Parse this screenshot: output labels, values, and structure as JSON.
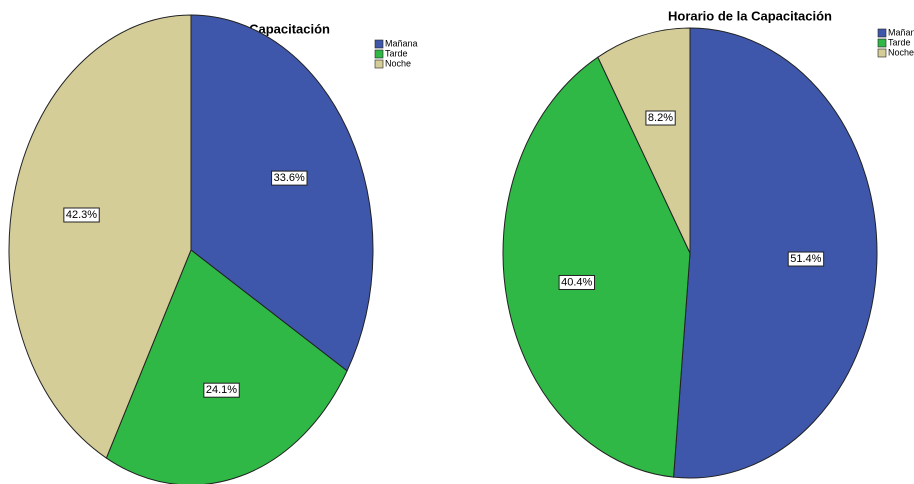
{
  "chart_data": [
    {
      "type": "pie",
      "title": "Horario de la Capacitación",
      "categories": [
        "Mañana",
        "Tarde",
        "Noche"
      ],
      "values": [
        33.6,
        24.1,
        42.3
      ],
      "value_labels": [
        "33.6%",
        "24.1%",
        "42.3%"
      ],
      "colors": [
        "#3f57ab",
        "#2fb845",
        "#d5cd98"
      ]
    },
    {
      "type": "pie",
      "title": "Horario de la Capacitación",
      "categories": [
        "Mañan",
        "Tarde",
        "Noche"
      ],
      "values": [
        51.4,
        40.4,
        8.2
      ],
      "value_labels": [
        "51.4%",
        "40.4%",
        "8.2%"
      ],
      "colors": [
        "#3f57ab",
        "#2fb845",
        "#d5cd98"
      ]
    }
  ]
}
